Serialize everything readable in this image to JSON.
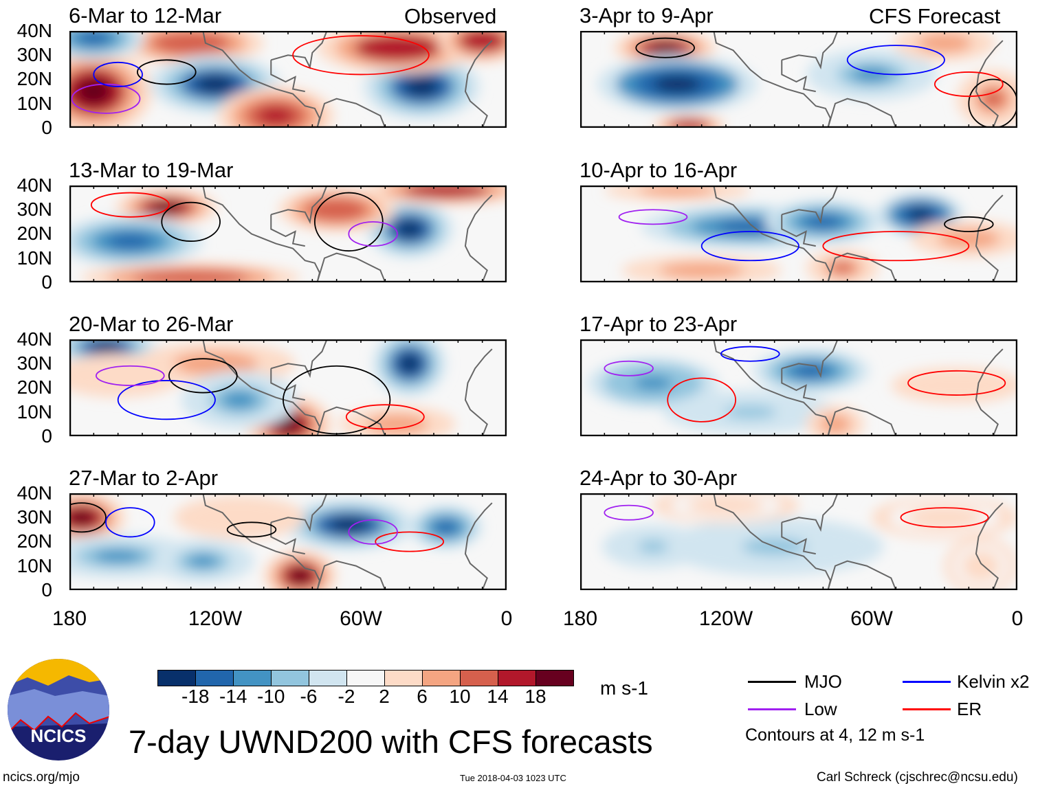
{
  "headers": {
    "left": "Observed",
    "right": "CFS Forecast"
  },
  "lat_labels": [
    "40N",
    "30N",
    "20N",
    "10N",
    "0"
  ],
  "lon_labels": [
    "180",
    "120W",
    "60W",
    "0"
  ],
  "panels": [
    {
      "title": "6-Mar to 12-Mar",
      "anomalies": [
        {
          "lon": -170,
          "lat": 15,
          "v": 20,
          "rx": 16,
          "ry": 12
        },
        {
          "lon": -130,
          "lat": 35,
          "v": 14,
          "rx": 20,
          "ry": 6
        },
        {
          "lon": -170,
          "lat": 37,
          "v": -14,
          "rx": 14,
          "ry": 6
        },
        {
          "lon": -120,
          "lat": 18,
          "v": -18,
          "rx": 18,
          "ry": 8
        },
        {
          "lon": -35,
          "lat": 17,
          "v": -18,
          "rx": 16,
          "ry": 9
        },
        {
          "lon": -95,
          "lat": 5,
          "v": 16,
          "rx": 16,
          "ry": 8
        },
        {
          "lon": -45,
          "lat": 33,
          "v": 18,
          "rx": 22,
          "ry": 7
        },
        {
          "lon": -10,
          "lat": 36,
          "v": 18,
          "rx": 12,
          "ry": 6
        }
      ],
      "contours": [
        {
          "type": "MJO",
          "lon": -140,
          "lat": 23,
          "rx": 12,
          "ry": 5
        },
        {
          "type": "ER",
          "lon": -60,
          "lat": 30,
          "rx": 28,
          "ry": 8
        },
        {
          "type": "Low",
          "lon": -165,
          "lat": 12,
          "rx": 14,
          "ry": 6
        },
        {
          "type": "Kelvin",
          "lon": -160,
          "lat": 22,
          "rx": 10,
          "ry": 5
        }
      ]
    },
    {
      "title": "13-Mar to 19-Mar",
      "anomalies": [
        {
          "lon": -140,
          "lat": 31,
          "v": 20,
          "rx": 14,
          "ry": 5
        },
        {
          "lon": -155,
          "lat": 17,
          "v": -14,
          "rx": 20,
          "ry": 7
        },
        {
          "lon": -40,
          "lat": 22,
          "v": -18,
          "rx": 12,
          "ry": 8
        },
        {
          "lon": -70,
          "lat": 30,
          "v": 14,
          "rx": 16,
          "ry": 6
        },
        {
          "lon": -25,
          "lat": 38,
          "v": 18,
          "rx": 22,
          "ry": 4
        },
        {
          "lon": -130,
          "lat": 2,
          "v": 14,
          "rx": 30,
          "ry": 4
        }
      ],
      "contours": [
        {
          "type": "MJO",
          "lon": -130,
          "lat": 25,
          "rx": 12,
          "ry": 8
        },
        {
          "type": "MJO",
          "lon": -65,
          "lat": 25,
          "rx": 14,
          "ry": 12
        },
        {
          "type": "ER",
          "lon": -155,
          "lat": 32,
          "rx": 16,
          "ry": 5
        },
        {
          "type": "Low",
          "lon": -55,
          "lat": 20,
          "rx": 10,
          "ry": 5
        }
      ]
    },
    {
      "title": "20-Mar to 26-Mar",
      "anomalies": [
        {
          "lon": -165,
          "lat": 37,
          "v": -18,
          "rx": 14,
          "ry": 5
        },
        {
          "lon": -40,
          "lat": 30,
          "v": -18,
          "rx": 10,
          "ry": 9
        },
        {
          "lon": -90,
          "lat": 5,
          "v": 20,
          "rx": 12,
          "ry": 8
        },
        {
          "lon": -120,
          "lat": 30,
          "v": 10,
          "rx": 22,
          "ry": 6
        },
        {
          "lon": -110,
          "lat": 15,
          "v": -10,
          "rx": 16,
          "ry": 8
        },
        {
          "lon": -45,
          "lat": 5,
          "v": 10,
          "rx": 16,
          "ry": 5
        },
        {
          "lon": -160,
          "lat": 25,
          "v": 6,
          "rx": 18,
          "ry": 6
        }
      ],
      "contours": [
        {
          "type": "MJO",
          "lon": -125,
          "lat": 25,
          "rx": 14,
          "ry": 7
        },
        {
          "type": "MJO",
          "lon": -70,
          "lat": 15,
          "rx": 22,
          "ry": 14
        },
        {
          "type": "Kelvin",
          "lon": -140,
          "lat": 15,
          "rx": 20,
          "ry": 8
        },
        {
          "type": "ER",
          "lon": -50,
          "lat": 8,
          "rx": 16,
          "ry": 5
        },
        {
          "type": "Low",
          "lon": -155,
          "lat": 25,
          "rx": 14,
          "ry": 4
        }
      ]
    },
    {
      "title": "27-Mar to 2-Apr",
      "anomalies": [
        {
          "lon": -175,
          "lat": 30,
          "v": 20,
          "rx": 12,
          "ry": 7
        },
        {
          "lon": -160,
          "lat": 14,
          "v": -10,
          "rx": 22,
          "ry": 6
        },
        {
          "lon": -65,
          "lat": 27,
          "v": -18,
          "rx": 18,
          "ry": 7
        },
        {
          "lon": -25,
          "lat": 26,
          "v": -14,
          "rx": 10,
          "ry": 6
        },
        {
          "lon": -85,
          "lat": 6,
          "v": 20,
          "rx": 10,
          "ry": 7
        },
        {
          "lon": -125,
          "lat": 12,
          "v": -10,
          "rx": 14,
          "ry": 6
        },
        {
          "lon": -110,
          "lat": 30,
          "v": 6,
          "rx": 18,
          "ry": 6
        }
      ],
      "contours": [
        {
          "type": "MJO",
          "lon": -175,
          "lat": 30,
          "rx": 10,
          "ry": 6
        },
        {
          "type": "MJO",
          "lon": -105,
          "lat": 25,
          "rx": 10,
          "ry": 3
        },
        {
          "type": "Kelvin",
          "lon": -155,
          "lat": 28,
          "rx": 10,
          "ry": 6
        },
        {
          "type": "ER",
          "lon": -40,
          "lat": 20,
          "rx": 14,
          "ry": 4
        },
        {
          "type": "Low",
          "lon": -55,
          "lat": 24,
          "rx": 10,
          "ry": 5
        }
      ]
    },
    {
      "title": "3-Apr to 9-Apr",
      "anomalies": [
        {
          "lon": -145,
          "lat": 33,
          "v": 20,
          "rx": 14,
          "ry": 5
        },
        {
          "lon": -140,
          "lat": 18,
          "v": -20,
          "rx": 22,
          "ry": 8
        },
        {
          "lon": -60,
          "lat": 22,
          "v": -10,
          "rx": 18,
          "ry": 7
        },
        {
          "lon": -10,
          "lat": 12,
          "v": 12,
          "rx": 10,
          "ry": 8
        },
        {
          "lon": -135,
          "lat": 1,
          "v": 18,
          "rx": 10,
          "ry": 3
        },
        {
          "lon": -30,
          "lat": 35,
          "v": 8,
          "rx": 14,
          "ry": 5
        }
      ],
      "contours": [
        {
          "type": "MJO",
          "lon": -145,
          "lat": 33,
          "rx": 12,
          "ry": 4
        },
        {
          "type": "Kelvin",
          "lon": -50,
          "lat": 28,
          "rx": 20,
          "ry": 6
        },
        {
          "type": "MJO",
          "lon": -10,
          "lat": 10,
          "rx": 10,
          "ry": 10
        },
        {
          "type": "ER",
          "lon": -20,
          "lat": 18,
          "rx": 14,
          "ry": 5
        }
      ]
    },
    {
      "title": "10-Apr to 16-Apr",
      "anomalies": [
        {
          "lon": -110,
          "lat": 23,
          "v": -14,
          "rx": 30,
          "ry": 6
        },
        {
          "lon": -40,
          "lat": 28,
          "v": -20,
          "rx": 12,
          "ry": 6
        },
        {
          "lon": -80,
          "lat": 25,
          "v": -14,
          "rx": 16,
          "ry": 6
        },
        {
          "lon": -130,
          "lat": 5,
          "v": 8,
          "rx": 22,
          "ry": 4
        },
        {
          "lon": -20,
          "lat": 18,
          "v": 10,
          "rx": 16,
          "ry": 5
        },
        {
          "lon": -72,
          "lat": 6,
          "v": 12,
          "rx": 10,
          "ry": 5
        },
        {
          "lon": -140,
          "lat": 38,
          "v": 8,
          "rx": 20,
          "ry": 3
        }
      ],
      "contours": [
        {
          "type": "Kelvin",
          "lon": -110,
          "lat": 15,
          "rx": 20,
          "ry": 6
        },
        {
          "type": "MJO",
          "lon": -20,
          "lat": 24,
          "rx": 10,
          "ry": 3
        },
        {
          "type": "ER",
          "lon": -50,
          "lat": 15,
          "rx": 30,
          "ry": 6
        },
        {
          "type": "Low",
          "lon": -150,
          "lat": 27,
          "rx": 14,
          "ry": 3
        }
      ]
    },
    {
      "title": "17-Apr to 23-Apr",
      "anomalies": [
        {
          "lon": -150,
          "lat": 22,
          "v": -12,
          "rx": 18,
          "ry": 7
        },
        {
          "lon": -85,
          "lat": 27,
          "v": -16,
          "rx": 16,
          "ry": 6
        },
        {
          "lon": -25,
          "lat": 21,
          "v": 6,
          "rx": 18,
          "ry": 5
        },
        {
          "lon": -110,
          "lat": 10,
          "v": -6,
          "rx": 24,
          "ry": 6
        },
        {
          "lon": -75,
          "lat": 5,
          "v": 10,
          "rx": 8,
          "ry": 5
        }
      ],
      "contours": [
        {
          "type": "ER",
          "lon": -130,
          "lat": 15,
          "rx": 14,
          "ry": 9
        },
        {
          "type": "Low",
          "lon": -160,
          "lat": 28,
          "rx": 10,
          "ry": 3
        },
        {
          "type": "ER",
          "lon": -25,
          "lat": 22,
          "rx": 20,
          "ry": 5
        },
        {
          "type": "Kelvin",
          "lon": -110,
          "lat": 34,
          "rx": 12,
          "ry": 3
        }
      ]
    },
    {
      "title": "24-Apr to 30-Apr",
      "anomalies": [
        {
          "lon": -100,
          "lat": 18,
          "v": -6,
          "rx": 30,
          "ry": 8
        },
        {
          "lon": -150,
          "lat": 18,
          "v": -6,
          "rx": 14,
          "ry": 6
        },
        {
          "lon": -30,
          "lat": 30,
          "v": 4,
          "rx": 20,
          "ry": 6
        },
        {
          "lon": -15,
          "lat": 10,
          "v": 4,
          "rx": 10,
          "ry": 8
        },
        {
          "lon": -120,
          "lat": 35,
          "v": 4,
          "rx": 20,
          "ry": 5
        }
      ],
      "contours": [
        {
          "type": "Low",
          "lon": -160,
          "lat": 32,
          "rx": 10,
          "ry": 3
        },
        {
          "type": "ER",
          "lon": -30,
          "lat": 30,
          "rx": 18,
          "ry": 4
        }
      ]
    }
  ],
  "colorbar": {
    "labels": [
      "-18",
      "-14",
      "-10",
      "-6",
      "-2",
      "2",
      "6",
      "10",
      "14",
      "18"
    ],
    "colors": [
      "#08306b",
      "#2166ac",
      "#4393c3",
      "#92c5de",
      "#d1e5f0",
      "#f7f7f7",
      "#fddbc7",
      "#f4a582",
      "#d6604d",
      "#b2182b",
      "#67001f"
    ],
    "units": "m s-1"
  },
  "legend": {
    "items": [
      {
        "label": "MJO",
        "color": "#000000"
      },
      {
        "label": "Kelvin x2",
        "color": "#0000ff"
      },
      {
        "label": "Low",
        "color": "#a020f0"
      },
      {
        "label": "ER",
        "color": "#ff0000"
      }
    ],
    "note": "Contours at 4, 12 m s-1"
  },
  "logo_text": "NCICS",
  "main_title": "7-day UWND200 with CFS forecasts",
  "footer": {
    "left": "ncics.org/mjo",
    "center": "Tue 2018-04-03 1023 UTC",
    "right": "Carl Schreck (cjschrec@ncsu.edu)"
  }
}
